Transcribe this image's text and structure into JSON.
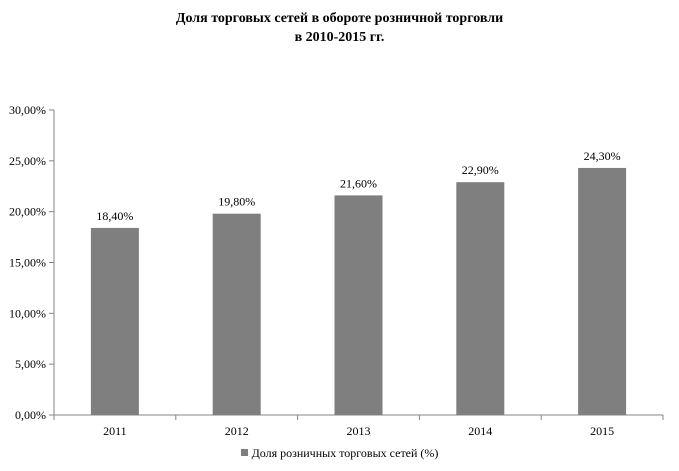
{
  "chart_data": {
    "type": "bar",
    "title": [
      "Доля торговых сетей в обороте розничной торговли",
      "в 2010-2015 гг."
    ],
    "categories": [
      "2011",
      "2012",
      "2013",
      "2014",
      "2015"
    ],
    "series": [
      {
        "name": "Доля розничных торговых сетей (%)",
        "values": [
          18.4,
          19.8,
          21.6,
          22.9,
          24.3
        ],
        "labels": [
          "18,40%",
          "19,80%",
          "21,60%",
          "22,90%",
          "24,30%"
        ]
      }
    ],
    "ylim": [
      0,
      30
    ],
    "yticks": [
      0,
      5,
      10,
      15,
      20,
      25,
      30
    ],
    "ytick_labels": [
      "0,00%",
      "5,00%",
      "10,00%",
      "15,00%",
      "20,00%",
      "25,00%",
      "30,00%"
    ],
    "grid": false,
    "legend_position": "bottom",
    "bar_color": "#7f7f7f",
    "axis_color": "#868686"
  }
}
